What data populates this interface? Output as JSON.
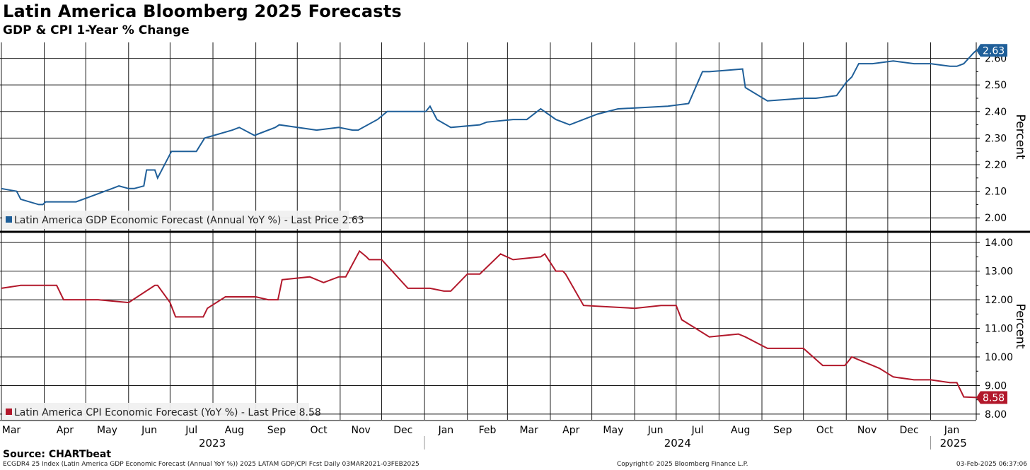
{
  "title": "Latin America Bloomberg 2025 Forecasts",
  "subtitle": "GDP & CPI 1-Year % Change",
  "source": "Source: CHARTbeat",
  "footer": {
    "left": "ECGDR4 25 Index (Latin America GDP Economic Forecast (Annual YoY %)) 2025 LATAM GDP/CPI Fcst  Daily 03MAR2021-03FEB2025",
    "center": "Copyright© 2025 Bloomberg Finance L.P.",
    "right": "03-Feb-2025 06:37:06"
  },
  "colors": {
    "gdp": "#1f5f99",
    "cpi": "#b2182b"
  },
  "chart_data": [
    {
      "type": "line",
      "name": "gdp",
      "ylabel": "Percent",
      "ylim": [
        1.95,
        2.66
      ],
      "yticks": [
        2.0,
        2.1,
        2.2,
        2.3,
        2.4,
        2.5,
        2.6
      ],
      "legend": "Latin America GDP Economic Forecast (Annual YoY %) - Last Price 2.63",
      "last_label": "2.63",
      "x_range": [
        "2023-02-28",
        "2025-02-03"
      ],
      "series": [
        {
          "x": [
            "2023-03-01",
            "2023-03-12",
            "2023-03-15",
            "2023-03-28",
            "2023-03-31",
            "2023-04-02",
            "2023-04-20",
            "2023-04-24",
            "2023-05-20",
            "2023-05-25",
            "2023-06-01",
            "2023-06-05",
            "2023-06-12",
            "2023-06-14",
            "2023-06-20",
            "2023-06-22",
            "2023-07-02",
            "2023-07-10",
            "2023-07-20",
            "2023-07-26",
            "2023-08-15",
            "2023-08-20",
            "2023-08-31",
            "2023-09-15",
            "2023-09-18",
            "2023-10-15",
            "2023-10-31",
            "2023-11-10",
            "2023-11-14",
            "2023-11-28",
            "2023-12-05",
            "2023-12-31",
            "2024-01-02",
            "2024-01-05",
            "2024-01-10",
            "2024-01-20",
            "2024-02-10",
            "2024-02-15",
            "2024-03-05",
            "2024-03-15",
            "2024-03-25",
            "2024-04-05",
            "2024-04-15",
            "2024-05-05",
            "2024-05-20",
            "2024-06-25",
            "2024-07-10",
            "2024-07-20",
            "2024-07-25",
            "2024-08-18",
            "2024-08-20",
            "2024-09-05",
            "2024-10-01",
            "2024-10-10",
            "2024-10-25",
            "2024-11-01",
            "2024-11-05",
            "2024-11-10",
            "2024-11-20",
            "2024-12-05",
            "2024-12-20",
            "2025-01-01",
            "2025-01-15",
            "2025-01-20",
            "2025-01-25",
            "2025-02-01",
            "2025-02-03"
          ],
          "values": [
            2.11,
            2.1,
            2.07,
            2.05,
            2.05,
            2.06,
            2.06,
            2.06,
            2.11,
            2.12,
            2.11,
            2.11,
            2.12,
            2.18,
            2.18,
            2.15,
            2.25,
            2.25,
            2.25,
            2.3,
            2.33,
            2.34,
            2.31,
            2.34,
            2.35,
            2.33,
            2.34,
            2.33,
            2.33,
            2.37,
            2.4,
            2.4,
            2.4,
            2.42,
            2.37,
            2.34,
            2.35,
            2.36,
            2.37,
            2.37,
            2.41,
            2.37,
            2.35,
            2.39,
            2.41,
            2.42,
            2.43,
            2.55,
            2.55,
            2.56,
            2.49,
            2.44,
            2.45,
            2.45,
            2.46,
            2.51,
            2.53,
            2.58,
            2.58,
            2.59,
            2.58,
            2.58,
            2.57,
            2.57,
            2.58,
            2.62,
            2.63
          ]
        }
      ]
    },
    {
      "type": "line",
      "name": "cpi",
      "ylabel": "Percent",
      "ylim": [
        7.8,
        14.35
      ],
      "yticks": [
        8.0,
        9.0,
        10.0,
        11.0,
        12.0,
        13.0,
        14.0
      ],
      "legend": "Latin America CPI Economic Forecast (YoY %) - Last Price 8.58",
      "last_label": "8.58",
      "x_range": [
        "2023-02-28",
        "2025-02-03"
      ],
      "series": [
        {
          "x": [
            "2023-03-01",
            "2023-03-15",
            "2023-04-10",
            "2023-04-15",
            "2023-05-10",
            "2023-06-01",
            "2023-06-20",
            "2023-06-22",
            "2023-07-01",
            "2023-07-05",
            "2023-07-25",
            "2023-07-28",
            "2023-08-10",
            "2023-09-01",
            "2023-09-10",
            "2023-09-15",
            "2023-09-17",
            "2023-09-20",
            "2023-10-10",
            "2023-10-20",
            "2023-10-31",
            "2023-11-05",
            "2023-11-15",
            "2023-11-20",
            "2023-11-22",
            "2023-12-01",
            "2023-12-20",
            "2024-01-05",
            "2024-01-15",
            "2024-01-20",
            "2024-02-01",
            "2024-02-10",
            "2024-02-25",
            "2024-03-05",
            "2024-03-25",
            "2024-03-28",
            "2024-04-05",
            "2024-04-10",
            "2024-04-12",
            "2024-04-25",
            "2024-06-01",
            "2024-06-20",
            "2024-07-01",
            "2024-07-05",
            "2024-07-15",
            "2024-07-25",
            "2024-08-15",
            "2024-08-20",
            "2024-09-05",
            "2024-09-15",
            "2024-10-01",
            "2024-10-15",
            "2024-10-20",
            "2024-10-31",
            "2024-11-05",
            "2024-11-15",
            "2024-11-20",
            "2024-11-25",
            "2024-12-05",
            "2024-12-20",
            "2025-01-01",
            "2025-01-15",
            "2025-01-20",
            "2025-01-25",
            "2025-02-03"
          ],
          "values": [
            12.4,
            12.5,
            12.5,
            12.0,
            12.0,
            11.9,
            12.5,
            12.5,
            11.9,
            11.4,
            11.4,
            11.7,
            12.1,
            12.1,
            12.0,
            12.0,
            12.0,
            12.7,
            12.8,
            12.6,
            12.8,
            12.8,
            13.7,
            13.5,
            13.4,
            13.4,
            12.4,
            12.4,
            12.3,
            12.3,
            12.9,
            12.9,
            13.6,
            13.4,
            13.5,
            13.6,
            13.0,
            13.0,
            12.9,
            11.8,
            11.7,
            11.8,
            11.8,
            11.3,
            11.0,
            10.7,
            10.8,
            10.7,
            10.3,
            10.3,
            10.3,
            9.7,
            9.7,
            9.7,
            10.0,
            9.8,
            9.7,
            9.6,
            9.3,
            9.2,
            9.2,
            9.1,
            9.1,
            8.6,
            8.58
          ]
        }
      ]
    }
  ],
  "x_axis": {
    "months": [
      {
        "label": "Mar",
        "date": "2023-03-01"
      },
      {
        "label": "Apr",
        "date": "2023-04-01"
      },
      {
        "label": "May",
        "date": "2023-05-01"
      },
      {
        "label": "Jun",
        "date": "2023-06-01"
      },
      {
        "label": "Jul",
        "date": "2023-07-01"
      },
      {
        "label": "Aug",
        "date": "2023-08-01"
      },
      {
        "label": "Sep",
        "date": "2023-09-01"
      },
      {
        "label": "Oct",
        "date": "2023-10-01"
      },
      {
        "label": "Nov",
        "date": "2023-11-01"
      },
      {
        "label": "Dec",
        "date": "2023-12-01"
      },
      {
        "label": "Jan",
        "date": "2024-01-01"
      },
      {
        "label": "Feb",
        "date": "2024-02-01"
      },
      {
        "label": "Mar",
        "date": "2024-03-01"
      },
      {
        "label": "Apr",
        "date": "2024-04-01"
      },
      {
        "label": "May",
        "date": "2024-05-01"
      },
      {
        "label": "Jun",
        "date": "2024-06-01"
      },
      {
        "label": "Jul",
        "date": "2024-07-01"
      },
      {
        "label": "Aug",
        "date": "2024-08-01"
      },
      {
        "label": "Sep",
        "date": "2024-09-01"
      },
      {
        "label": "Oct",
        "date": "2024-10-01"
      },
      {
        "label": "Nov",
        "date": "2024-11-01"
      },
      {
        "label": "Dec",
        "date": "2024-12-01"
      },
      {
        "label": "Jan",
        "date": "2025-01-01"
      }
    ],
    "years": [
      {
        "label": "2023",
        "start": "2023-02-28",
        "end": "2024-01-01"
      },
      {
        "label": "2024",
        "start": "2024-01-01",
        "end": "2025-01-01"
      },
      {
        "label": "2025",
        "start": "2025-01-01",
        "end": "2025-02-03"
      }
    ]
  }
}
